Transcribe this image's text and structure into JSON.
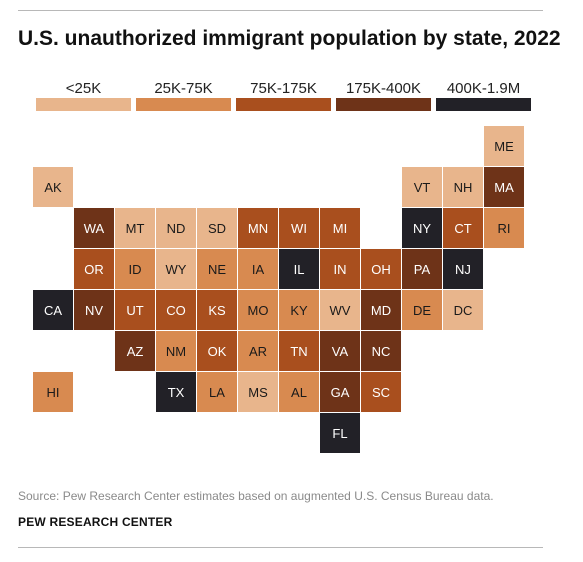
{
  "chart_data": {
    "type": "tile-map",
    "title": "U.S. unauthorized immigrant population by state, 2022",
    "legend": [
      {
        "label": "<25K",
        "color": "#e8b58c"
      },
      {
        "label": "25K-75K",
        "color": "#d88a50"
      },
      {
        "label": "75K-175K",
        "color": "#a94f1e"
      },
      {
        "label": "175K-400K",
        "color": "#6e3318"
      },
      {
        "label": "400K-1.9M",
        "color": "#222127"
      }
    ],
    "states": [
      {
        "abbr": "ME",
        "bin": 0,
        "col": 11,
        "row": 0
      },
      {
        "abbr": "AK",
        "bin": 0,
        "col": 0,
        "row": 1
      },
      {
        "abbr": "VT",
        "bin": 0,
        "col": 9,
        "row": 1
      },
      {
        "abbr": "NH",
        "bin": 0,
        "col": 10,
        "row": 1
      },
      {
        "abbr": "MA",
        "bin": 3,
        "col": 11,
        "row": 1
      },
      {
        "abbr": "WA",
        "bin": 3,
        "col": 1,
        "row": 2
      },
      {
        "abbr": "MT",
        "bin": 0,
        "col": 2,
        "row": 2
      },
      {
        "abbr": "ND",
        "bin": 0,
        "col": 3,
        "row": 2
      },
      {
        "abbr": "SD",
        "bin": 0,
        "col": 4,
        "row": 2
      },
      {
        "abbr": "MN",
        "bin": 2,
        "col": 5,
        "row": 2
      },
      {
        "abbr": "WI",
        "bin": 2,
        "col": 6,
        "row": 2
      },
      {
        "abbr": "MI",
        "bin": 2,
        "col": 7,
        "row": 2
      },
      {
        "abbr": "NY",
        "bin": 4,
        "col": 9,
        "row": 2
      },
      {
        "abbr": "CT",
        "bin": 2,
        "col": 10,
        "row": 2
      },
      {
        "abbr": "RI",
        "bin": 1,
        "col": 11,
        "row": 2
      },
      {
        "abbr": "OR",
        "bin": 2,
        "col": 1,
        "row": 3
      },
      {
        "abbr": "ID",
        "bin": 1,
        "col": 2,
        "row": 3
      },
      {
        "abbr": "WY",
        "bin": 0,
        "col": 3,
        "row": 3
      },
      {
        "abbr": "NE",
        "bin": 1,
        "col": 4,
        "row": 3
      },
      {
        "abbr": "IA",
        "bin": 1,
        "col": 5,
        "row": 3
      },
      {
        "abbr": "IL",
        "bin": 4,
        "col": 6,
        "row": 3
      },
      {
        "abbr": "IN",
        "bin": 2,
        "col": 7,
        "row": 3
      },
      {
        "abbr": "OH",
        "bin": 2,
        "col": 8,
        "row": 3
      },
      {
        "abbr": "PA",
        "bin": 3,
        "col": 9,
        "row": 3
      },
      {
        "abbr": "NJ",
        "bin": 4,
        "col": 10,
        "row": 3
      },
      {
        "abbr": "CA",
        "bin": 4,
        "col": 0,
        "row": 4
      },
      {
        "abbr": "NV",
        "bin": 3,
        "col": 1,
        "row": 4
      },
      {
        "abbr": "UT",
        "bin": 2,
        "col": 2,
        "row": 4
      },
      {
        "abbr": "CO",
        "bin": 2,
        "col": 3,
        "row": 4
      },
      {
        "abbr": "KS",
        "bin": 2,
        "col": 4,
        "row": 4
      },
      {
        "abbr": "MO",
        "bin": 1,
        "col": 5,
        "row": 4
      },
      {
        "abbr": "KY",
        "bin": 1,
        "col": 6,
        "row": 4
      },
      {
        "abbr": "WV",
        "bin": 0,
        "col": 7,
        "row": 4
      },
      {
        "abbr": "MD",
        "bin": 3,
        "col": 8,
        "row": 4
      },
      {
        "abbr": "DE",
        "bin": 1,
        "col": 9,
        "row": 4
      },
      {
        "abbr": "DC",
        "bin": 0,
        "col": 10,
        "row": 4
      },
      {
        "abbr": "AZ",
        "bin": 3,
        "col": 2,
        "row": 5
      },
      {
        "abbr": "NM",
        "bin": 1,
        "col": 3,
        "row": 5
      },
      {
        "abbr": "OK",
        "bin": 2,
        "col": 4,
        "row": 5
      },
      {
        "abbr": "AR",
        "bin": 1,
        "col": 5,
        "row": 5
      },
      {
        "abbr": "TN",
        "bin": 2,
        "col": 6,
        "row": 5
      },
      {
        "abbr": "VA",
        "bin": 3,
        "col": 7,
        "row": 5
      },
      {
        "abbr": "NC",
        "bin": 3,
        "col": 8,
        "row": 5
      },
      {
        "abbr": "HI",
        "bin": 1,
        "col": 0,
        "row": 6
      },
      {
        "abbr": "TX",
        "bin": 4,
        "col": 3,
        "row": 6
      },
      {
        "abbr": "LA",
        "bin": 1,
        "col": 4,
        "row": 6
      },
      {
        "abbr": "MS",
        "bin": 0,
        "col": 5,
        "row": 6
      },
      {
        "abbr": "AL",
        "bin": 1,
        "col": 6,
        "row": 6
      },
      {
        "abbr": "GA",
        "bin": 3,
        "col": 7,
        "row": 6
      },
      {
        "abbr": "SC",
        "bin": 2,
        "col": 8,
        "row": 6
      },
      {
        "abbr": "FL",
        "bin": 4,
        "col": 7,
        "row": 7
      }
    ]
  },
  "source": "Source: Pew Research Center estimates based on augmented U.S. Census Bureau data.",
  "brand": "PEW RESEARCH CENTER"
}
